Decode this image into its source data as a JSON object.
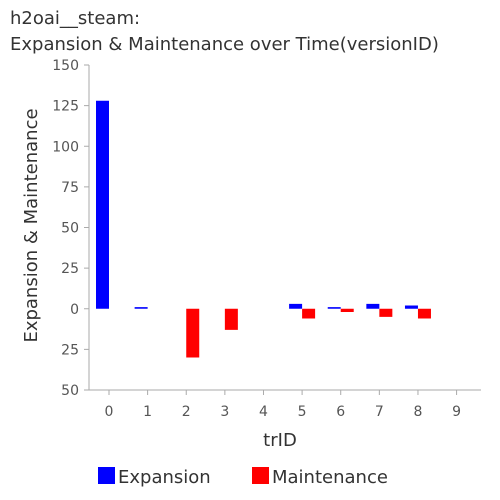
{
  "chart_data": {
    "type": "bar",
    "title_line1": "h2oai__steam:",
    "title_line2": "Expansion & Maintenance over Time(versionID)",
    "xlabel": "trID",
    "ylabel": "Expansion & Maintenance",
    "categories": [
      "0",
      "1",
      "2",
      "3",
      "4",
      "5",
      "6",
      "7",
      "8",
      "9"
    ],
    "yticks": [
      {
        "value": 150,
        "label": "150"
      },
      {
        "value": 125,
        "label": "125"
      },
      {
        "value": 100,
        "label": "100"
      },
      {
        "value": 75,
        "label": "75"
      },
      {
        "value": 50,
        "label": "50"
      },
      {
        "value": 25,
        "label": "25"
      },
      {
        "value": 0,
        "label": "0"
      },
      {
        "value": -25,
        "label": "25"
      },
      {
        "value": -50,
        "label": "50"
      }
    ],
    "ylim": [
      -50,
      150
    ],
    "series": [
      {
        "name": "Expansion",
        "color": "#0000ff",
        "values": [
          128,
          1,
          0,
          0,
          0,
          3,
          1,
          3,
          2,
          0
        ]
      },
      {
        "name": "Maintenance",
        "color": "#ff0000",
        "values": [
          0,
          0,
          -30,
          -13,
          0,
          -6,
          -2,
          -5,
          -6,
          0
        ]
      }
    ],
    "legend_position": "bottom",
    "grid": false
  }
}
